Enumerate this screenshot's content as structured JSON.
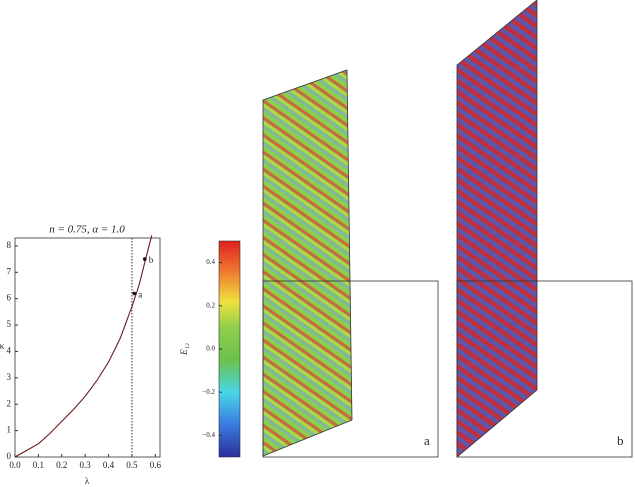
{
  "chart_data": {
    "type": "line",
    "title": "n = 0.75, α = 1.0",
    "xlabel": "λ",
    "ylabel": "κ",
    "x": [
      0,
      0.05,
      0.1,
      0.15,
      0.2,
      0.25,
      0.3,
      0.35,
      0.4,
      0.45,
      0.5,
      0.53,
      0.55,
      0.57,
      0.585
    ],
    "values": [
      0,
      0.25,
      0.5,
      0.9,
      1.35,
      1.8,
      2.3,
      2.9,
      3.6,
      4.5,
      5.7,
      6.5,
      7.2,
      7.9,
      8.4
    ],
    "color": "#6b1a1a",
    "xlim": [
      0,
      0.62
    ],
    "ylim": [
      0,
      8.3
    ],
    "xticks": [
      {
        "value": 0,
        "label": "0.0"
      },
      {
        "value": 0.1,
        "label": "0.1"
      },
      {
        "value": 0.2,
        "label": "0.2"
      },
      {
        "value": 0.3,
        "label": "0.3"
      },
      {
        "value": 0.4,
        "label": "0.4"
      },
      {
        "value": 0.5,
        "label": "0.5"
      },
      {
        "value": 0.6,
        "label": "0.6"
      }
    ],
    "yticks": [
      0,
      1,
      2,
      3,
      4,
      5,
      6,
      7,
      8
    ],
    "vline": 0.5,
    "annotations": [
      {
        "text": "a",
        "x": 0.51,
        "y": 6.2
      },
      {
        "text": "b",
        "x": 0.555,
        "y": 7.5
      }
    ]
  },
  "colorbar": {
    "label": "E₁₂",
    "lim": [
      -0.5,
      0.5
    ],
    "ticks": [
      {
        "value": 0.4,
        "label": "0.4"
      },
      {
        "value": 0.2,
        "label": "0.2"
      },
      {
        "value": 0,
        "label": "0.0"
      },
      {
        "value": -0.2,
        "label": "−0.2"
      },
      {
        "value": -0.4,
        "label": "−0.4"
      }
    ]
  },
  "panels": [
    {
      "label": "a"
    },
    {
      "label": "b"
    }
  ]
}
